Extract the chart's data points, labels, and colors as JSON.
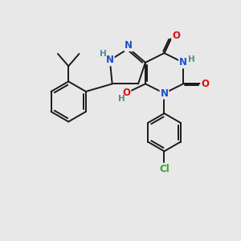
{
  "bg_color": "#e8e8e8",
  "bond_color": "#1a1a1a",
  "bond_width": 1.4,
  "atom_colors": {
    "N": "#1a50d0",
    "O": "#dd1010",
    "H": "#4a9090",
    "Cl": "#2aaa2a",
    "C": "#1a1a1a"
  },
  "font_size_atom": 8.5,
  "font_size_H": 7.5
}
